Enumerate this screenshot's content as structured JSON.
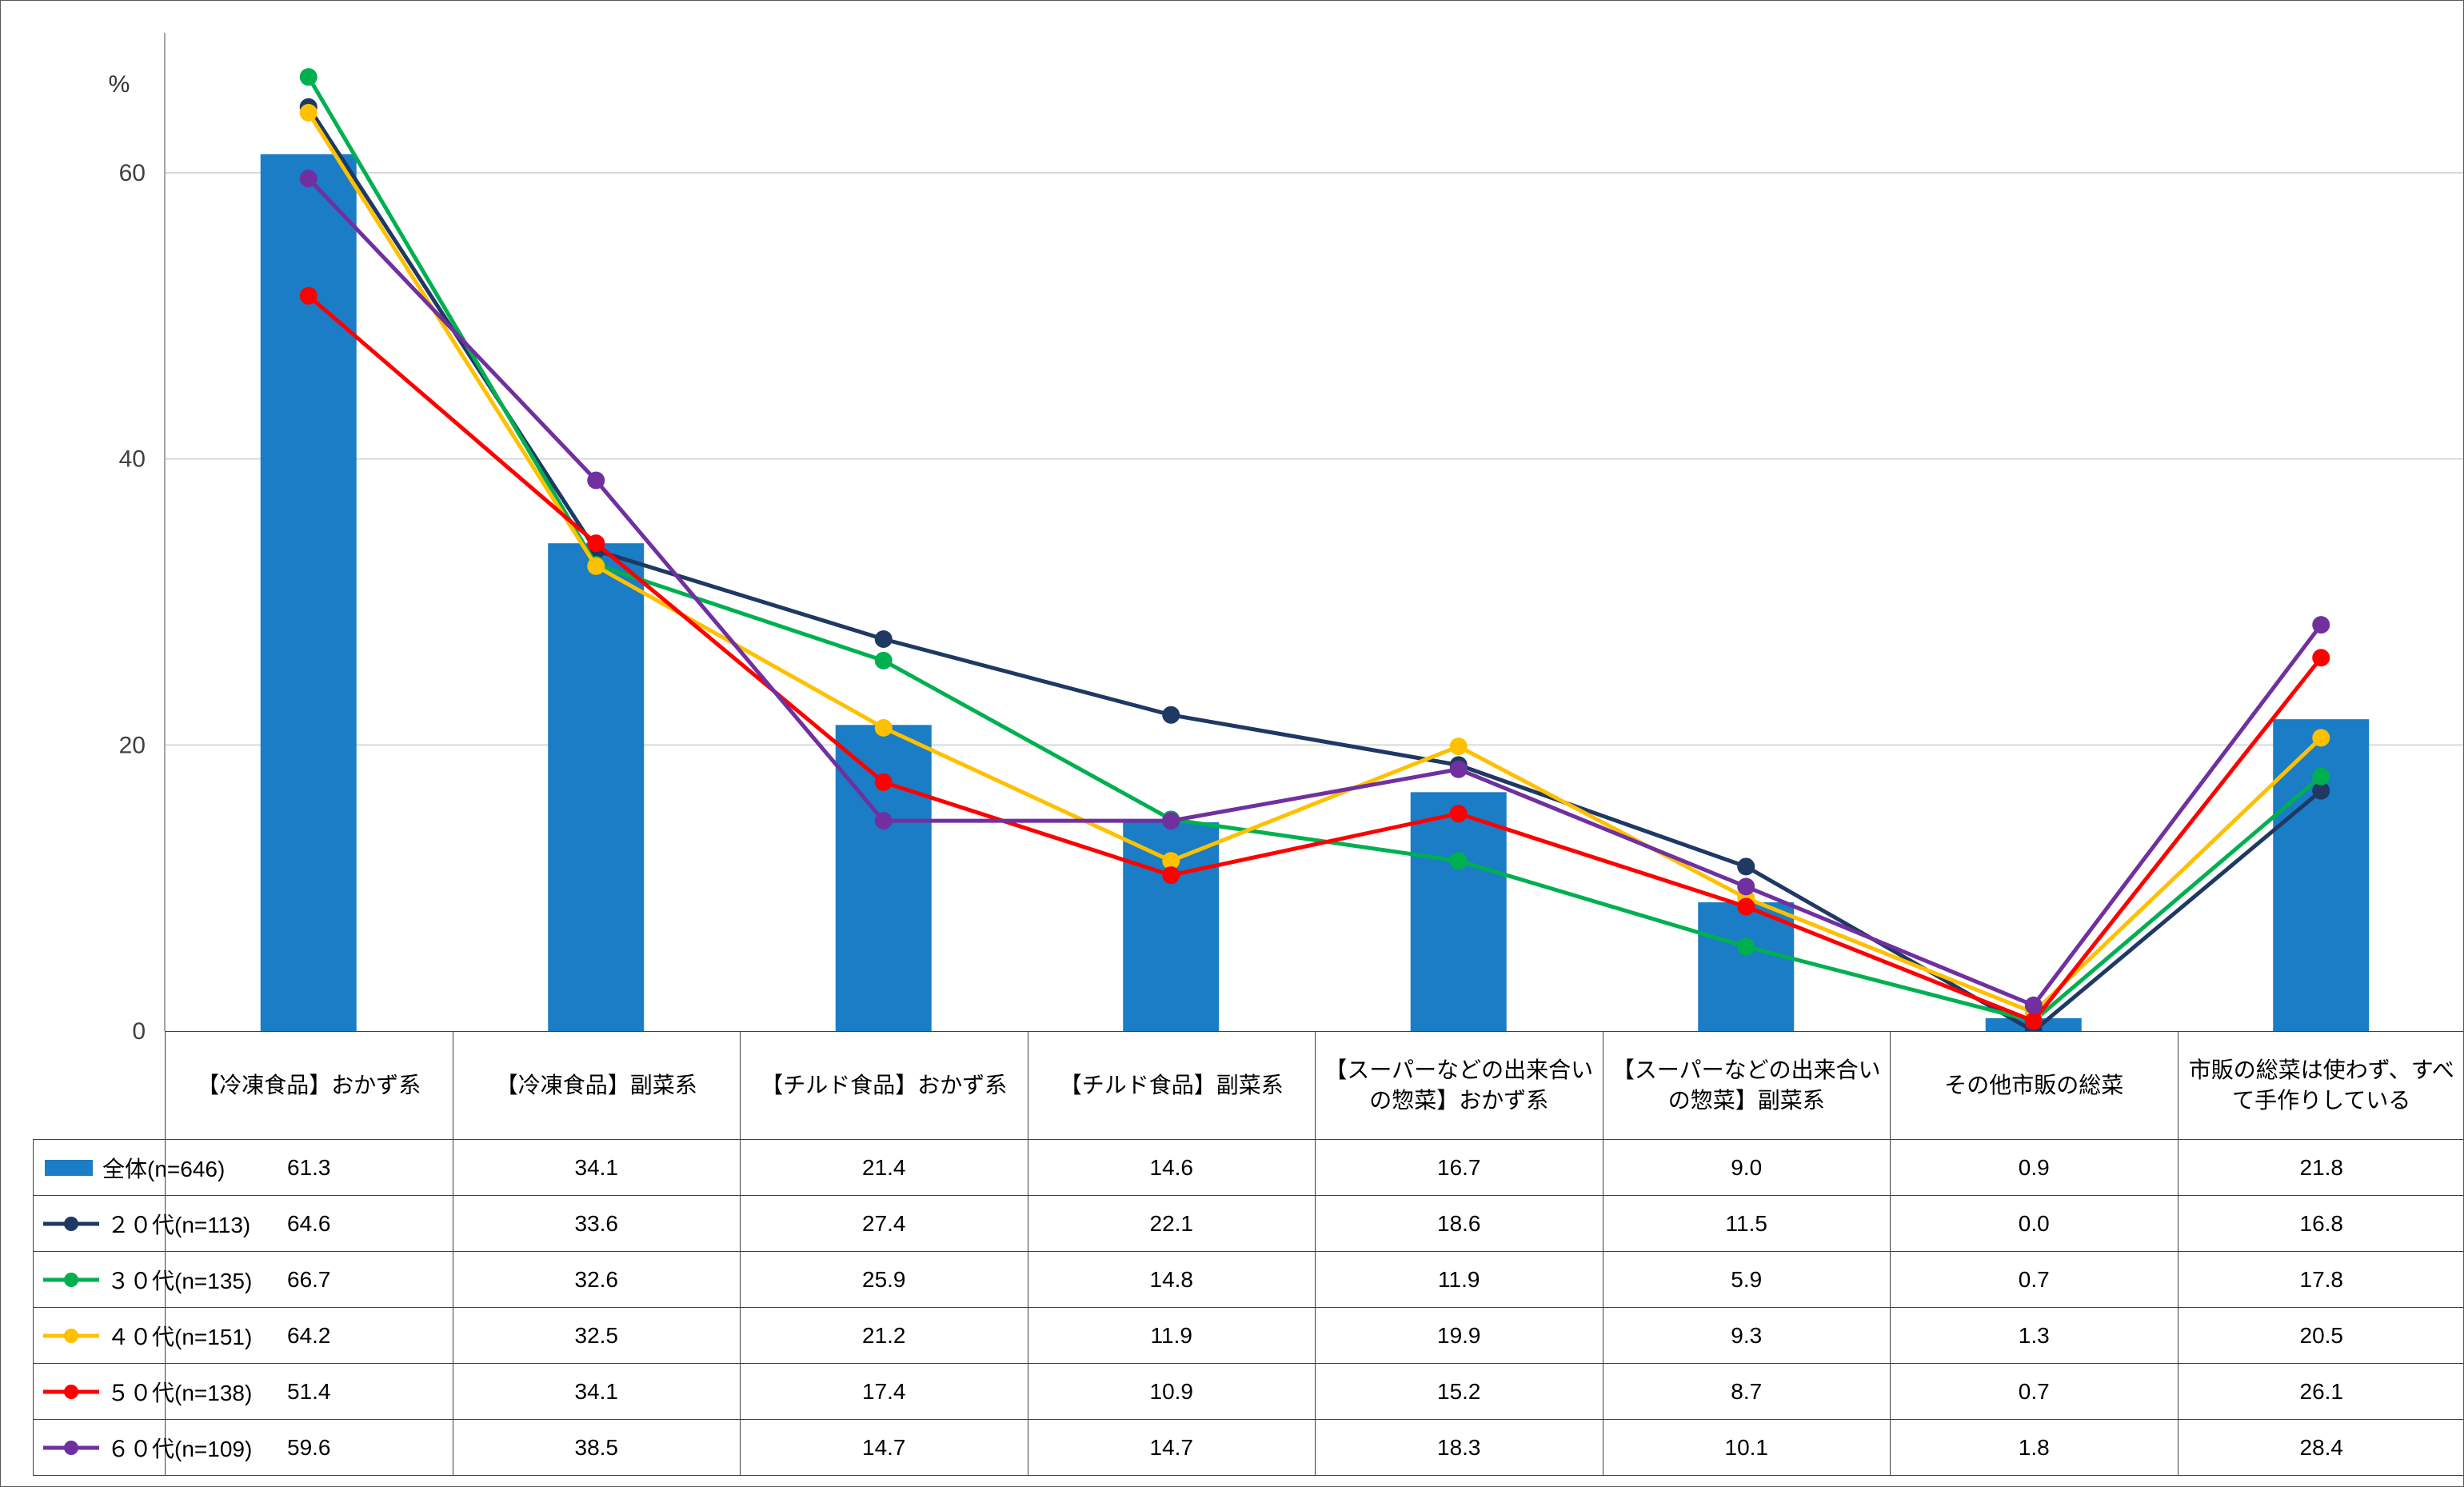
{
  "chart_data": {
    "type": "bar+line",
    "title": "",
    "y_axis": {
      "unit": "%",
      "ticks": [
        0,
        20,
        40,
        60
      ],
      "max": 72
    },
    "grid_color": "#D9D9D9",
    "axis_color": "#A6A6A6",
    "tick_label_color": "#404040",
    "categories": [
      "【冷凍食品】おかず系",
      "【冷凍食品】副菜系",
      "【チルド食品】おかず系",
      "【チルド食品】副菜系",
      "【スーパーなどの出来合いの惣菜】おかず系",
      "【スーパーなどの出来合いの惣菜】副菜系",
      "その他市販の総菜",
      "市販の総菜は使わず、すべて手作りしている"
    ],
    "series": [
      {
        "name": "全体(n=646)",
        "type": "bar",
        "color": "#1A7DC5",
        "values": [
          61.3,
          34.1,
          21.4,
          14.6,
          16.7,
          9.0,
          0.9,
          21.8
        ]
      },
      {
        "name": "２０代(n=113)",
        "type": "line",
        "color": "#1F3864",
        "values": [
          64.6,
          33.6,
          27.4,
          22.1,
          18.6,
          11.5,
          0.0,
          16.8
        ]
      },
      {
        "name": "３０代(n=135)",
        "type": "line",
        "color": "#00B050",
        "values": [
          66.7,
          32.6,
          25.9,
          14.8,
          11.9,
          5.9,
          0.7,
          17.8
        ]
      },
      {
        "name": "４０代(n=151)",
        "type": "line",
        "color": "#FFC000",
        "values": [
          64.2,
          32.5,
          21.2,
          11.9,
          19.9,
          9.3,
          1.3,
          20.5
        ]
      },
      {
        "name": "５０代(n=138)",
        "type": "line",
        "color": "#FF0000",
        "values": [
          51.4,
          34.1,
          17.4,
          10.9,
          15.2,
          8.7,
          0.7,
          26.1
        ]
      },
      {
        "name": "６０代(n=109)",
        "type": "line",
        "color": "#7030A0",
        "values": [
          59.6,
          38.5,
          14.7,
          14.7,
          18.3,
          10.1,
          1.8,
          28.4
        ]
      }
    ]
  }
}
